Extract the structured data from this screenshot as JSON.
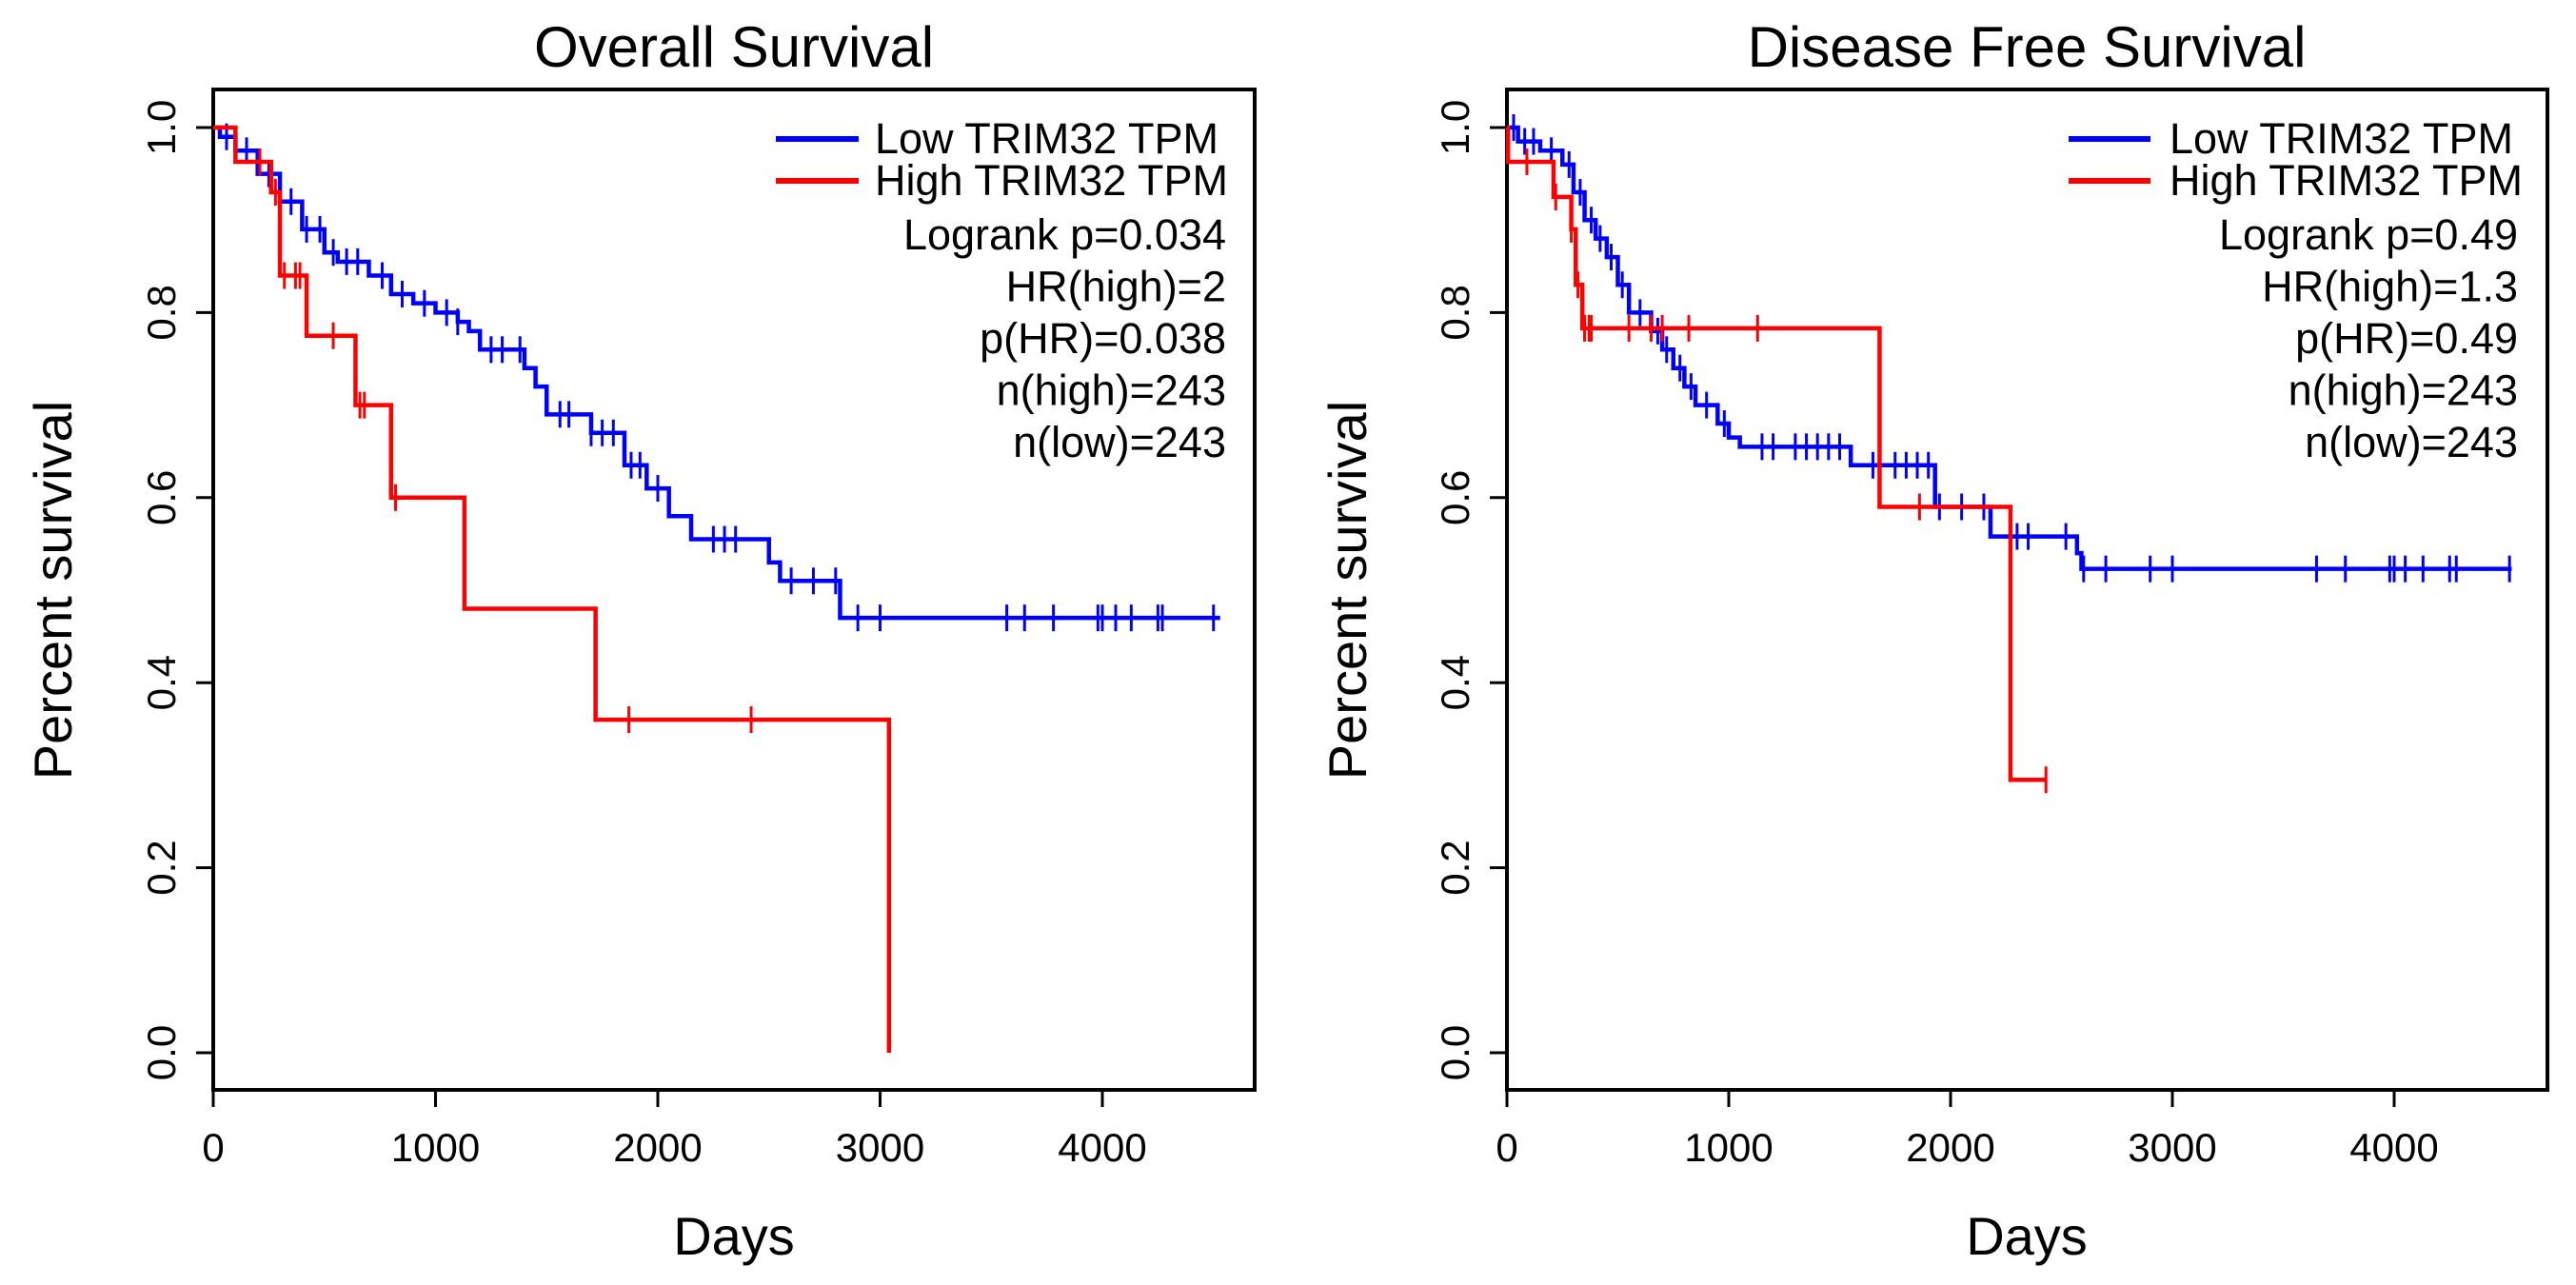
{
  "chart_data": [
    {
      "type": "line",
      "title": "Overall Survival",
      "xlabel": "Days",
      "ylabel": "Percent survival",
      "xlim": [
        0,
        4600
      ],
      "ylim": [
        0,
        1.0
      ],
      "xticks": [
        "0",
        "1000",
        "2000",
        "3000",
        "4000"
      ],
      "yticks": [
        "0.0",
        "0.2",
        "0.4",
        "0.6",
        "0.8",
        "1.0"
      ],
      "legend_position": "top-right",
      "legend": [
        "Low TRIM32 TPM",
        "High TRIM32 TPM"
      ],
      "stats": [
        "Logrank p=0.034",
        "HR(high)=2",
        "p(HR)=0.038",
        "n(high)=243",
        "n(low)=243"
      ],
      "series": [
        {
          "name": "Low TRIM32 TPM",
          "color": "#0000ff",
          "steps": [
            [
              0,
              1.0
            ],
            [
              30,
              0.99
            ],
            [
              100,
              0.975
            ],
            [
              200,
              0.95
            ],
            [
              300,
              0.92
            ],
            [
              400,
              0.89
            ],
            [
              500,
              0.865
            ],
            [
              560,
              0.855
            ],
            [
              700,
              0.84
            ],
            [
              800,
              0.82
            ],
            [
              900,
              0.81
            ],
            [
              1000,
              0.8
            ],
            [
              1100,
              0.79
            ],
            [
              1150,
              0.78
            ],
            [
              1200,
              0.76
            ],
            [
              1400,
              0.74
            ],
            [
              1450,
              0.72
            ],
            [
              1500,
              0.69
            ],
            [
              1700,
              0.67
            ],
            [
              1850,
              0.635
            ],
            [
              1950,
              0.61
            ],
            [
              2050,
              0.58
            ],
            [
              2150,
              0.555
            ],
            [
              2500,
              0.53
            ],
            [
              2550,
              0.51
            ],
            [
              2820,
              0.47
            ]
          ],
          "end": 4530,
          "censored": [
            60,
            150,
            250,
            350,
            420,
            480,
            540,
            600,
            650,
            760,
            850,
            950,
            1050,
            1100,
            1250,
            1300,
            1380,
            1560,
            1600,
            1700,
            1750,
            1800,
            1880,
            1920,
            2000,
            2250,
            2300,
            2350,
            2600,
            2700,
            2800,
            2900,
            3000,
            3570,
            3650,
            3780,
            3980,
            4000,
            4060,
            4130,
            4250,
            4270,
            4500
          ]
        },
        {
          "name": "High TRIM32 TPM",
          "color": "#ff0000",
          "steps": [
            [
              0,
              1.0
            ],
            [
              100,
              0.963
            ],
            [
              260,
              0.93
            ],
            [
              300,
              0.84
            ],
            [
              420,
              0.775
            ],
            [
              640,
              0.7
            ],
            [
              800,
              0.6
            ],
            [
              1130,
              0.48
            ],
            [
              1720,
              0.36
            ],
            [
              3040,
              0.0
            ]
          ],
          "end": 3040,
          "censored": [
            210,
            280,
            320,
            370,
            390,
            540,
            660,
            680,
            820,
            1870,
            2420
          ]
        }
      ]
    },
    {
      "type": "line",
      "title": "Disease Free Survival",
      "xlabel": "Days",
      "ylabel": "Percent survival",
      "xlim": [
        0,
        4600
      ],
      "ylim": [
        0,
        1.0
      ],
      "xticks": [
        "0",
        "1000",
        "2000",
        "3000",
        "4000"
      ],
      "yticks": [
        "0.0",
        "0.2",
        "0.4",
        "0.6",
        "0.8",
        "1.0"
      ],
      "legend_position": "top-right",
      "legend": [
        "Low TRIM32 TPM",
        "High TRIM32 TPM"
      ],
      "stats": [
        "Logrank p=0.49",
        "HR(high)=1.3",
        "p(HR)=0.49",
        "n(high)=243",
        "n(low)=243"
      ],
      "series": [
        {
          "name": "Low TRIM32 TPM",
          "color": "#0000ff",
          "steps": [
            [
              0,
              1.0
            ],
            [
              50,
              0.985
            ],
            [
              150,
              0.975
            ],
            [
              250,
              0.96
            ],
            [
              300,
              0.93
            ],
            [
              350,
              0.9
            ],
            [
              400,
              0.88
            ],
            [
              450,
              0.86
            ],
            [
              500,
              0.83
            ],
            [
              550,
              0.8
            ],
            [
              650,
              0.78
            ],
            [
              700,
              0.76
            ],
            [
              750,
              0.74
            ],
            [
              800,
              0.72
            ],
            [
              850,
              0.7
            ],
            [
              950,
              0.68
            ],
            [
              1000,
              0.665
            ],
            [
              1050,
              0.655
            ],
            [
              1550,
              0.635
            ],
            [
              1930,
              0.59
            ],
            [
              2180,
              0.558
            ],
            [
              2570,
              0.54
            ],
            [
              2590,
              0.523
            ]
          ],
          "end": 4530,
          "censored": [
            30,
            80,
            120,
            200,
            280,
            330,
            380,
            420,
            470,
            520,
            600,
            680,
            720,
            780,
            830,
            900,
            980,
            1150,
            1200,
            1300,
            1350,
            1400,
            1450,
            1500,
            1650,
            1750,
            1800,
            1850,
            1900,
            1950,
            2050,
            2150,
            2300,
            2350,
            2520,
            2600,
            2700,
            2900,
            3000,
            3650,
            3780,
            3980,
            4000,
            4050,
            4130,
            4250,
            4280,
            4520
          ]
        },
        {
          "name": "High TRIM32 TPM",
          "color": "#ff0000",
          "steps": [
            [
              0,
              1.0
            ],
            [
              5,
              0.963
            ],
            [
              210,
              0.925
            ],
            [
              290,
              0.89
            ],
            [
              310,
              0.83
            ],
            [
              340,
              0.783
            ],
            [
              1680,
              0.59
            ],
            [
              2270,
              0.295
            ]
          ],
          "end": 2430,
          "censored": [
            90,
            220,
            290,
            320,
            350,
            370,
            380,
            550,
            650,
            700,
            820,
            1130,
            1860,
            2430
          ]
        }
      ]
    }
  ]
}
